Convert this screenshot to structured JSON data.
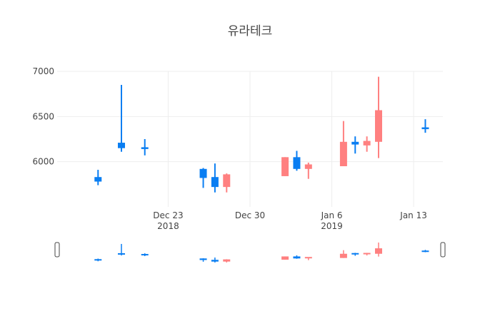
{
  "chart_data": {
    "type": "candlestick",
    "title": "유라테크",
    "xlabel": "",
    "ylabel": "",
    "ylim": [
      5500,
      7000
    ],
    "y_ticks": [
      6000,
      6500,
      7000
    ],
    "y_tick_labels": [
      "6000",
      "6500",
      "7000"
    ],
    "x_range": [
      "2018-12-14",
      "2019-01-15"
    ],
    "x_ticks": [
      {
        "date": "2018-12-23",
        "label": "Dec 23",
        "sublabel": "2018"
      },
      {
        "date": "2018-12-30",
        "label": "Dec 30",
        "sublabel": ""
      },
      {
        "date": "2019-01-06",
        "label": "Jan 6",
        "sublabel": "2019"
      },
      {
        "date": "2019-01-13",
        "label": "Jan 13",
        "sublabel": ""
      }
    ],
    "grid": true,
    "rangeslider": true,
    "colors": {
      "increasing": "#ff8080",
      "decreasing": "#0a7ef2"
    },
    "candles": [
      {
        "date": "2018-12-17",
        "open": 5830,
        "high": 5910,
        "low": 5740,
        "close": 5780
      },
      {
        "date": "2018-12-19",
        "open": 6210,
        "high": 6850,
        "low": 6110,
        "close": 6150
      },
      {
        "date": "2018-12-21",
        "open": 6160,
        "high": 6250,
        "low": 6070,
        "close": 6140
      },
      {
        "date": "2018-12-26",
        "open": 5920,
        "high": 5930,
        "low": 5710,
        "close": 5820
      },
      {
        "date": "2018-12-27",
        "open": 5830,
        "high": 5980,
        "low": 5660,
        "close": 5720
      },
      {
        "date": "2018-12-28",
        "open": 5720,
        "high": 5870,
        "low": 5660,
        "close": 5860
      },
      {
        "date": "2019-01-02",
        "open": 5840,
        "high": 6050,
        "low": 5840,
        "close": 6050
      },
      {
        "date": "2019-01-03",
        "open": 6050,
        "high": 6120,
        "low": 5900,
        "close": 5920
      },
      {
        "date": "2019-01-04",
        "open": 5920,
        "high": 5990,
        "low": 5810,
        "close": 5970
      },
      {
        "date": "2019-01-07",
        "open": 5950,
        "high": 6450,
        "low": 5950,
        "close": 6220
      },
      {
        "date": "2019-01-08",
        "open": 6220,
        "high": 6280,
        "low": 6090,
        "close": 6190
      },
      {
        "date": "2019-01-09",
        "open": 6180,
        "high": 6280,
        "low": 6110,
        "close": 6230
      },
      {
        "date": "2019-01-10",
        "open": 6220,
        "high": 6940,
        "low": 6040,
        "close": 6570
      },
      {
        "date": "2019-01-14",
        "open": 6380,
        "high": 6470,
        "low": 6320,
        "close": 6360
      }
    ]
  }
}
